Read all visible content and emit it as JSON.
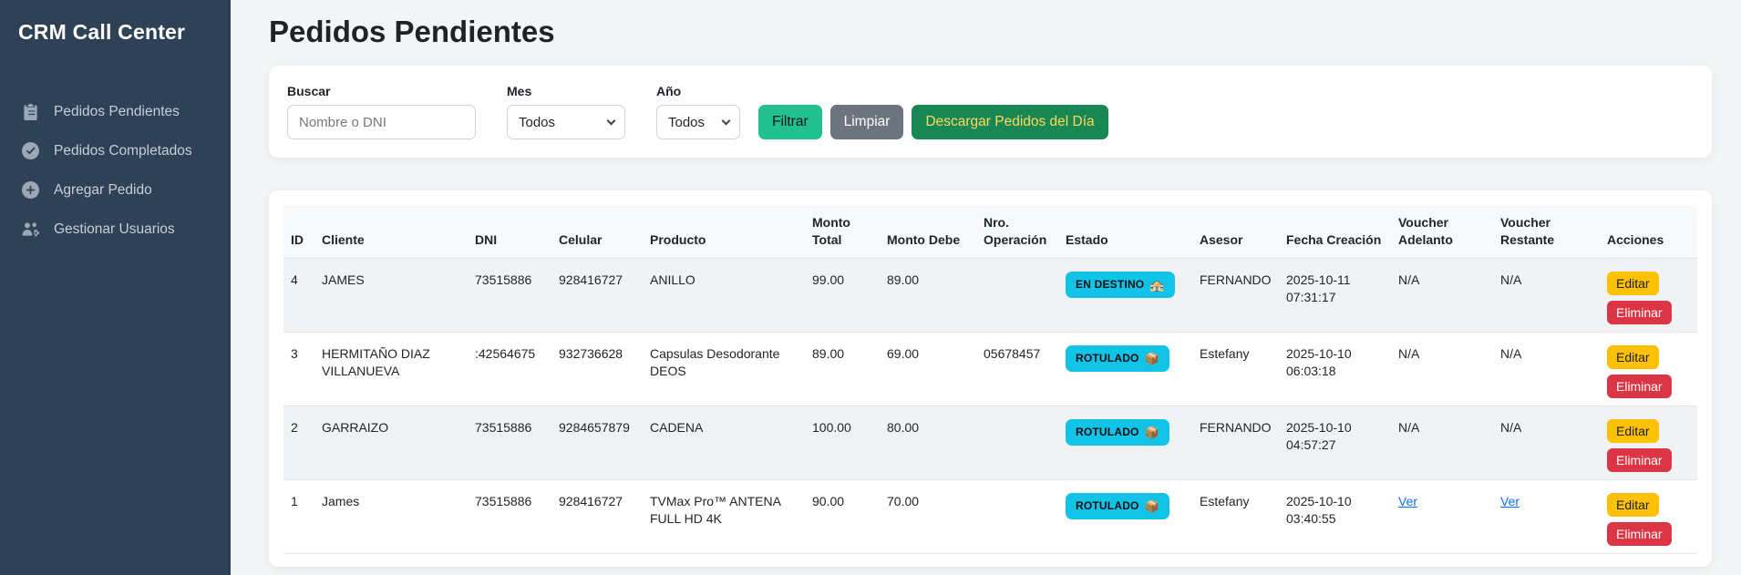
{
  "sidebar": {
    "title": "CRM Call Center",
    "items": [
      {
        "label": "Pedidos Pendientes",
        "icon": "clipboard-icon"
      },
      {
        "label": "Pedidos Completados",
        "icon": "check-circle-icon"
      },
      {
        "label": "Agregar Pedido",
        "icon": "plus-circle-icon"
      },
      {
        "label": "Gestionar Usuarios",
        "icon": "users-gear-icon"
      }
    ]
  },
  "header": {
    "title": "Pedidos Pendientes"
  },
  "filters": {
    "search_label": "Buscar",
    "search_placeholder": "Nombre o DNI",
    "search_value": "",
    "month_label": "Mes",
    "month_value": "Todos",
    "year_label": "Año",
    "year_value": "Todos",
    "filter_button": "Filtrar",
    "clear_button": "Limpiar",
    "download_button": "Descargar Pedidos del Día"
  },
  "table": {
    "columns": [
      "ID",
      "Cliente",
      "DNI",
      "Celular",
      "Producto",
      "Monto Total",
      "Monto Debe",
      "Nro. Operación",
      "Estado",
      "Asesor",
      "Fecha Creación",
      "Voucher Adelanto",
      "Voucher Restante",
      "Acciones"
    ],
    "rows": [
      {
        "id": "4",
        "cliente": "JAMES",
        "dni": "73515886",
        "celular": "928416727",
        "producto": "ANILLO",
        "monto_total": "99.00",
        "monto_debe": "89.00",
        "nro_operacion": "",
        "estado": "EN DESTINO",
        "estado_icon_glyph": "🏤",
        "estado_icon_name": "building-icon",
        "asesor": "FERNANDO",
        "fecha": "2025-10-11 07:31:17",
        "voucher_adelanto": "N/A",
        "voucher_restante": "N/A",
        "vouchers_are_links": false
      },
      {
        "id": "3",
        "cliente": "HERMITAÑO DIAZ VILLANUEVA",
        "dni": ":42564675",
        "celular": "932736628",
        "producto": "Capsulas Desodorante DEOS",
        "monto_total": "89.00",
        "monto_debe": "69.00",
        "nro_operacion": "05678457",
        "estado": "ROTULADO",
        "estado_icon_glyph": "📦",
        "estado_icon_name": "package-icon",
        "asesor": "Estefany",
        "fecha": "2025-10-10 06:03:18",
        "voucher_adelanto": "N/A",
        "voucher_restante": "N/A",
        "vouchers_are_links": false
      },
      {
        "id": "2",
        "cliente": "GARRAIZO",
        "dni": "73515886",
        "celular": "9284657879",
        "producto": "CADENA",
        "monto_total": "100.00",
        "monto_debe": "80.00",
        "nro_operacion": "",
        "estado": "ROTULADO",
        "estado_icon_glyph": "📦",
        "estado_icon_name": "package-icon",
        "asesor": "FERNANDO",
        "fecha": "2025-10-10 04:57:27",
        "voucher_adelanto": "N/A",
        "voucher_restante": "N/A",
        "vouchers_are_links": false
      },
      {
        "id": "1",
        "cliente": "James",
        "dni": "73515886",
        "celular": "928416727",
        "producto": "TVMax Pro™ ANTENA FULL HD 4K",
        "monto_total": "90.00",
        "monto_debe": "70.00",
        "nro_operacion": "",
        "estado": "ROTULADO",
        "estado_icon_glyph": "📦",
        "estado_icon_name": "package-icon",
        "asesor": "Estefany",
        "fecha": "2025-10-10 03:40:55",
        "voucher_adelanto": "Ver",
        "voucher_restante": "Ver",
        "vouchers_are_links": true
      }
    ],
    "actions": {
      "edit": "Editar",
      "delete": "Eliminar"
    }
  },
  "colors": {
    "sidebar_bg": "#2f4156",
    "accent_teal": "#22c08f",
    "accent_green": "#198754",
    "accent_gray": "#6c757d",
    "badge_info": "#12c3e8",
    "warning_yellow": "#ffc107",
    "danger_red": "#dc3545",
    "link_blue": "#0d6efd"
  }
}
